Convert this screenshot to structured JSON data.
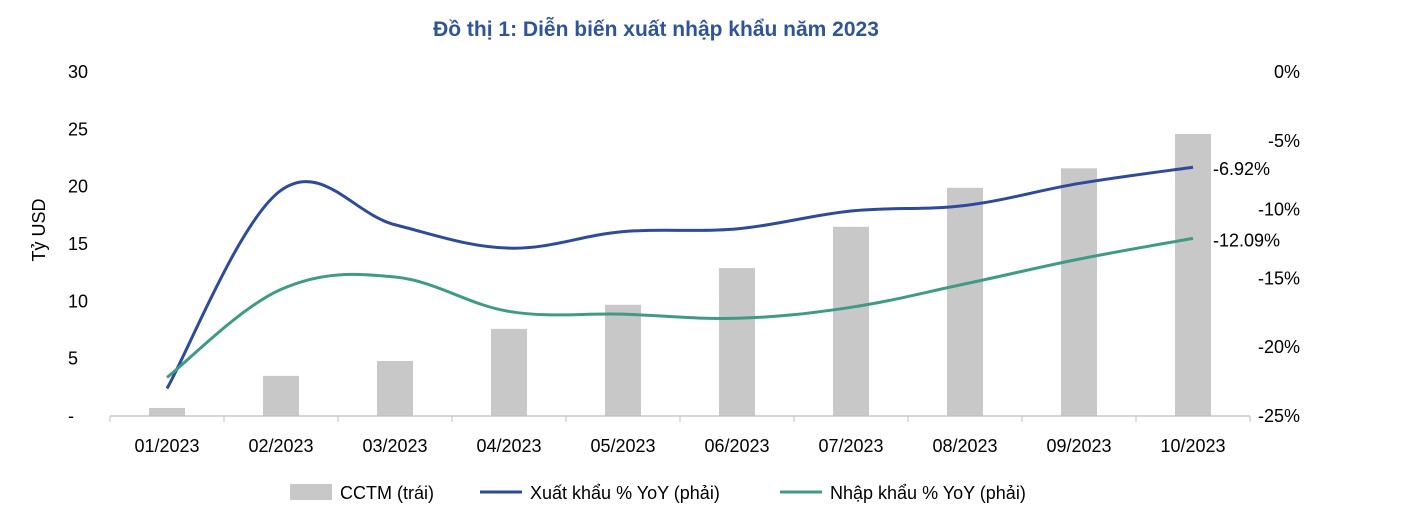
{
  "chart_data": {
    "type": "bar",
    "title": "Đồ thị 1: Diễn biến xuất nhập khẩu năm 2023",
    "ylabel_left": "Tỷ USD",
    "categories": [
      "01/2023",
      "02/2023",
      "03/2023",
      "04/2023",
      "05/2023",
      "06/2023",
      "07/2023",
      "08/2023",
      "09/2023",
      "10/2023"
    ],
    "left_axis": {
      "min": 0,
      "max": 30,
      "ticks": [
        "-",
        "5",
        "10",
        "15",
        "20",
        "25",
        "30"
      ],
      "tick_values": [
        0,
        5,
        10,
        15,
        20,
        25,
        30
      ]
    },
    "right_axis": {
      "min": -25,
      "max": 0,
      "ticks": [
        "-25%",
        "-20%",
        "-15%",
        "-10%",
        "-5%",
        "0%"
      ],
      "tick_values": [
        -25,
        -20,
        -15,
        -10,
        -5,
        0
      ]
    },
    "series": [
      {
        "name": "CCTM (trái)",
        "type": "bar",
        "axis": "left",
        "color": "#c8c8c8",
        "values": [
          0.7,
          3.5,
          4.8,
          7.6,
          9.7,
          12.9,
          16.5,
          19.9,
          21.6,
          24.6
        ]
      },
      {
        "name": "Xuất khẩu % YoY (phải)",
        "type": "line",
        "axis": "right",
        "color": "#2e4b9b",
        "values": [
          -23.0,
          -8.6,
          -11.1,
          -12.8,
          -11.6,
          -11.4,
          -10.1,
          -9.7,
          -8.1,
          -6.92
        ],
        "end_label": "-6.92%"
      },
      {
        "name": "Nhập khẩu % YoY (phải)",
        "type": "line",
        "axis": "right",
        "color": "#3f9b86",
        "values": [
          -22.2,
          -15.8,
          -14.9,
          -17.4,
          -17.6,
          -17.9,
          -17.1,
          -15.4,
          -13.6,
          -12.09
        ],
        "end_label": "-12.09%"
      }
    ],
    "legend_position": "bottom",
    "grid": false
  }
}
